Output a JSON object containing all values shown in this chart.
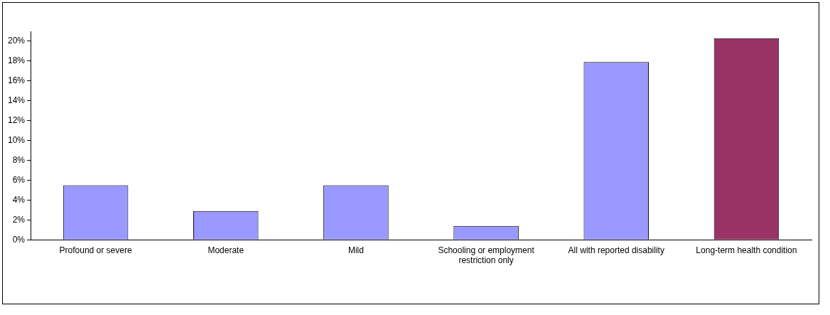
{
  "chart_data": {
    "type": "bar",
    "categories": [
      "Profound or severe",
      "Moderate",
      "Mild",
      "Schooling or employment restriction only",
      "All with reported disability",
      "Long-term health condition"
    ],
    "values": [
      5.5,
      2.9,
      5.5,
      1.4,
      17.9,
      20.3
    ],
    "colors": [
      "#9999ff",
      "#9999ff",
      "#9999ff",
      "#9999ff",
      "#9999ff",
      "#993366"
    ],
    "ylim": [
      0,
      21
    ],
    "yticks": [
      {
        "value": 0,
        "label": "0%"
      },
      {
        "value": 2,
        "label": "2%"
      },
      {
        "value": 4,
        "label": "4%"
      },
      {
        "value": 6,
        "label": "6%"
      },
      {
        "value": 8,
        "label": "8%"
      },
      {
        "value": 10,
        "label": "10%"
      },
      {
        "value": 12,
        "label": "12%"
      },
      {
        "value": 14,
        "label": "14%"
      },
      {
        "value": 16,
        "label": "16%"
      },
      {
        "value": 18,
        "label": "18%"
      },
      {
        "value": 20,
        "label": "20%"
      }
    ],
    "grid": false,
    "legend": false
  }
}
